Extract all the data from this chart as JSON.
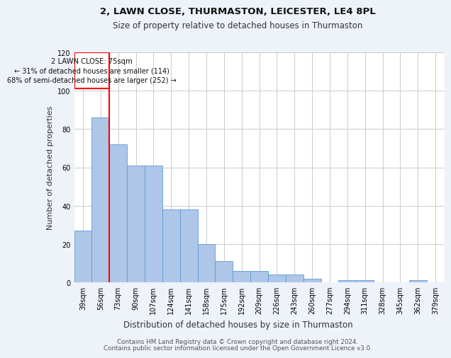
{
  "title1": "2, LAWN CLOSE, THURMASTON, LEICESTER, LE4 8PL",
  "title2": "Size of property relative to detached houses in Thurmaston",
  "xlabel": "Distribution of detached houses by size in Thurmaston",
  "ylabel": "Number of detached properties",
  "categories": [
    "39sqm",
    "56sqm",
    "73sqm",
    "90sqm",
    "107sqm",
    "124sqm",
    "141sqm",
    "158sqm",
    "175sqm",
    "192sqm",
    "209sqm",
    "226sqm",
    "243sqm",
    "260sqm",
    "277sqm",
    "294sqm",
    "311sqm",
    "328sqm",
    "345sqm",
    "362sqm",
    "379sqm"
  ],
  "values": [
    27,
    86,
    72,
    61,
    61,
    38,
    38,
    20,
    11,
    6,
    6,
    4,
    4,
    2,
    0,
    1,
    1,
    0,
    0,
    1,
    0
  ],
  "bar_color": "#aec6e8",
  "bar_edge_color": "#5b9bd5",
  "ylim": [
    0,
    120
  ],
  "yticks": [
    0,
    20,
    40,
    60,
    80,
    100,
    120
  ],
  "property_label": "2 LAWN CLOSE: 75sqm",
  "annotation_line1": "← 31% of detached houses are smaller (114)",
  "annotation_line2": "68% of semi-detached houses are larger (252) →",
  "red_line_x": 2.0,
  "footer1": "Contains HM Land Registry data © Crown copyright and database right 2024.",
  "footer2": "Contains public sector information licensed under the Open Government Licence v3.0.",
  "bg_color": "#eef2f9",
  "plot_bg_color": "#ffffff",
  "grid_color": "#cccccc"
}
